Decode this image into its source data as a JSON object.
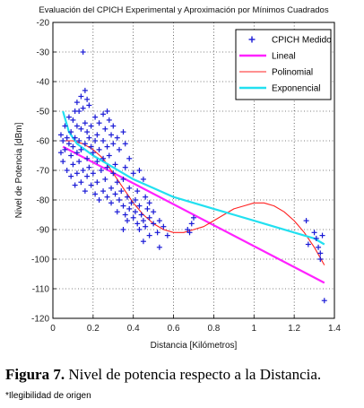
{
  "chart_data": {
    "type": "scatter",
    "title": "Evaluación del CPICH Experimental y Aproximación por Mínimos Cuadrados",
    "xlabel": "Distancia [Kilómetros]",
    "ylabel": "Nivel de Potencia [dBm]",
    "xlim": [
      0,
      1.4
    ],
    "ylim": [
      -120,
      -20
    ],
    "xticks": [
      "0",
      "0.2",
      "0.4",
      "0.6",
      "0.8",
      "1",
      "1.2",
      "1.4"
    ],
    "yticks": [
      "-20",
      "-30",
      "-40",
      "-50",
      "-60",
      "-70",
      "-80",
      "-90",
      "-100",
      "-110",
      "-120"
    ],
    "grid": true,
    "legend_position": "top-right",
    "series": [
      {
        "name": "CPICH Medido",
        "kind": "scatter",
        "color": "#1a1ad6",
        "marker": "plus",
        "points": [
          [
            0.15,
            -30
          ],
          [
            0.16,
            -43
          ],
          [
            0.14,
            -45
          ],
          [
            0.17,
            -46
          ],
          [
            0.12,
            -47
          ],
          [
            0.18,
            -48
          ],
          [
            0.15,
            -49
          ],
          [
            0.11,
            -50
          ],
          [
            0.13,
            -50
          ],
          [
            0.27,
            -50
          ],
          [
            0.25,
            -51
          ],
          [
            0.08,
            -52
          ],
          [
            0.21,
            -52
          ],
          [
            0.1,
            -53
          ],
          [
            0.28,
            -53
          ],
          [
            0.16,
            -54
          ],
          [
            0.23,
            -54
          ],
          [
            0.06,
            -55
          ],
          [
            0.12,
            -55
          ],
          [
            0.19,
            -55
          ],
          [
            0.3,
            -55
          ],
          [
            0.14,
            -56
          ],
          [
            0.26,
            -56
          ],
          [
            0.09,
            -57
          ],
          [
            0.17,
            -57
          ],
          [
            0.35,
            -57
          ],
          [
            0.04,
            -58
          ],
          [
            0.22,
            -58
          ],
          [
            0.29,
            -58
          ],
          [
            0.07,
            -59
          ],
          [
            0.11,
            -59
          ],
          [
            0.18,
            -59
          ],
          [
            0.32,
            -59
          ],
          [
            0.05,
            -60
          ],
          [
            0.13,
            -60
          ],
          [
            0.25,
            -60
          ],
          [
            0.21,
            -60
          ],
          [
            0.08,
            -61
          ],
          [
            0.16,
            -61
          ],
          [
            0.3,
            -61
          ],
          [
            0.36,
            -61
          ],
          [
            0.1,
            -62
          ],
          [
            0.19,
            -62
          ],
          [
            0.27,
            -62
          ],
          [
            0.06,
            -63
          ],
          [
            0.14,
            -63
          ],
          [
            0.23,
            -63
          ],
          [
            0.33,
            -63
          ],
          [
            0.04,
            -64
          ],
          [
            0.12,
            -64
          ],
          [
            0.2,
            -64
          ],
          [
            0.28,
            -65
          ],
          [
            0.09,
            -65
          ],
          [
            0.17,
            -66
          ],
          [
            0.25,
            -66
          ],
          [
            0.38,
            -66
          ],
          [
            0.05,
            -67
          ],
          [
            0.13,
            -67
          ],
          [
            0.22,
            -67
          ],
          [
            0.31,
            -68
          ],
          [
            0.1,
            -68
          ],
          [
            0.18,
            -69
          ],
          [
            0.27,
            -69
          ],
          [
            0.36,
            -69
          ],
          [
            0.07,
            -70
          ],
          [
            0.15,
            -70
          ],
          [
            0.24,
            -70
          ],
          [
            0.43,
            -70
          ],
          [
            0.12,
            -71
          ],
          [
            0.2,
            -71
          ],
          [
            0.3,
            -71
          ],
          [
            0.4,
            -71
          ],
          [
            0.09,
            -72
          ],
          [
            0.17,
            -72
          ],
          [
            0.26,
            -73
          ],
          [
            0.35,
            -73
          ],
          [
            0.45,
            -73
          ],
          [
            0.14,
            -74
          ],
          [
            0.22,
            -74
          ],
          [
            0.32,
            -74
          ],
          [
            0.11,
            -75
          ],
          [
            0.19,
            -75
          ],
          [
            0.29,
            -76
          ],
          [
            0.38,
            -76
          ],
          [
            0.16,
            -77
          ],
          [
            0.25,
            -77
          ],
          [
            0.34,
            -77
          ],
          [
            0.42,
            -77
          ],
          [
            0.21,
            -78
          ],
          [
            0.31,
            -78
          ],
          [
            0.27,
            -79
          ],
          [
            0.37,
            -79
          ],
          [
            0.46,
            -79
          ],
          [
            0.23,
            -80
          ],
          [
            0.33,
            -80
          ],
          [
            0.41,
            -80
          ],
          [
            0.29,
            -81
          ],
          [
            0.39,
            -81
          ],
          [
            0.48,
            -81
          ],
          [
            0.35,
            -82
          ],
          [
            0.43,
            -82
          ],
          [
            0.38,
            -83
          ],
          [
            0.47,
            -83
          ],
          [
            0.32,
            -84
          ],
          [
            0.41,
            -84
          ],
          [
            0.5,
            -84
          ],
          [
            0.36,
            -85
          ],
          [
            0.44,
            -85
          ],
          [
            0.4,
            -86
          ],
          [
            0.48,
            -86
          ],
          [
            0.37,
            -87
          ],
          [
            0.45,
            -87
          ],
          [
            0.53,
            -87
          ],
          [
            0.42,
            -88
          ],
          [
            0.5,
            -88
          ],
          [
            0.46,
            -89
          ],
          [
            0.55,
            -89
          ],
          [
            0.35,
            -90
          ],
          [
            0.43,
            -90
          ],
          [
            0.52,
            -91
          ],
          [
            0.48,
            -92
          ],
          [
            0.57,
            -92
          ],
          [
            0.45,
            -94
          ],
          [
            0.53,
            -96
          ],
          [
            0.67,
            -90
          ],
          [
            0.69,
            -88
          ],
          [
            0.7,
            -86
          ],
          [
            0.68,
            -91
          ],
          [
            1.26,
            -87
          ],
          [
            1.27,
            -95
          ],
          [
            1.3,
            -91
          ],
          [
            1.31,
            -93
          ],
          [
            1.32,
            -96
          ],
          [
            1.33,
            -98
          ],
          [
            1.34,
            -92
          ],
          [
            1.33,
            -100
          ],
          [
            1.35,
            -114
          ]
        ]
      },
      {
        "name": "Lineal",
        "kind": "line",
        "color": "#ff22ff",
        "points": [
          [
            0.05,
            -62
          ],
          [
            1.35,
            -108
          ]
        ]
      },
      {
        "name": "Polinomial",
        "kind": "line",
        "color": "#ff2020",
        "points": [
          [
            0.05,
            -60
          ],
          [
            0.1,
            -60
          ],
          [
            0.15,
            -61
          ],
          [
            0.2,
            -63
          ],
          [
            0.25,
            -66
          ],
          [
            0.3,
            -71
          ],
          [
            0.35,
            -76
          ],
          [
            0.4,
            -81
          ],
          [
            0.45,
            -85
          ],
          [
            0.5,
            -88
          ],
          [
            0.55,
            -90
          ],
          [
            0.6,
            -91
          ],
          [
            0.65,
            -91
          ],
          [
            0.7,
            -90
          ],
          [
            0.75,
            -89
          ],
          [
            0.8,
            -87
          ],
          [
            0.85,
            -85
          ],
          [
            0.9,
            -83
          ],
          [
            0.95,
            -82
          ],
          [
            1.0,
            -81
          ],
          [
            1.05,
            -81
          ],
          [
            1.1,
            -82
          ],
          [
            1.15,
            -84
          ],
          [
            1.2,
            -87
          ],
          [
            1.25,
            -91
          ],
          [
            1.3,
            -96
          ],
          [
            1.35,
            -102
          ]
        ]
      },
      {
        "name": "Exponencial",
        "kind": "line",
        "color": "#22e0f0",
        "points": [
          [
            0.05,
            -50
          ],
          [
            0.08,
            -57
          ],
          [
            0.12,
            -61
          ],
          [
            0.2,
            -65
          ],
          [
            0.3,
            -69
          ],
          [
            0.4,
            -73
          ],
          [
            0.5,
            -76
          ],
          [
            0.6,
            -79
          ],
          [
            0.7,
            -81
          ],
          [
            0.8,
            -83
          ],
          [
            0.9,
            -85
          ],
          [
            1.0,
            -87
          ],
          [
            1.1,
            -89
          ],
          [
            1.2,
            -91
          ],
          [
            1.3,
            -93
          ],
          [
            1.35,
            -95
          ]
        ]
      }
    ]
  },
  "caption": {
    "label": "Figura 7.",
    "text": " Nivel de potencia respecto a la Distancia."
  },
  "note": "*Ilegibilidad de origen"
}
